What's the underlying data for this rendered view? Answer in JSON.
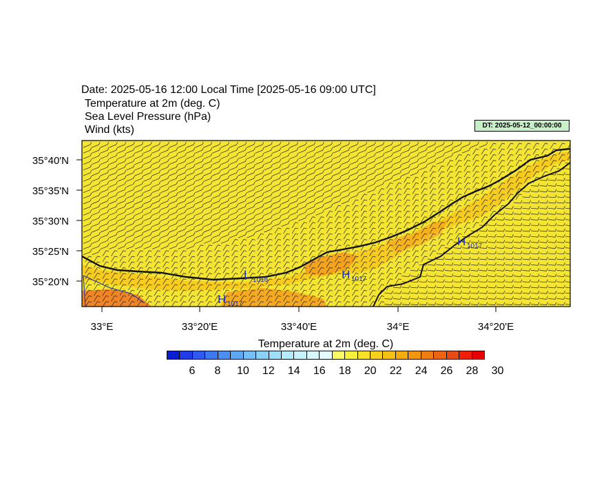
{
  "header": {
    "date_line": "Date: 2025-05-16  12:00 Local Time [2025-05-16  09:00 UTC]",
    "var1": "Temperature at 2m   (deg. C)",
    "var2": "Sea Level Pressure   (hPa)",
    "var3": "Wind   (kts)",
    "dt_badge": "DT: 2025-05-12_00:00:00"
  },
  "map": {
    "lat_labels": [
      "35°40'N",
      "35°35'N",
      "35°30'N",
      "35°25'N",
      "35°20'N"
    ],
    "lon_labels": [
      "33°E",
      "33°20'E",
      "33°40'E",
      "34°E",
      "34°20'E"
    ],
    "pressure_centers": [
      {
        "type": "L",
        "value": "1016"
      },
      {
        "type": "H",
        "value": "1017"
      },
      {
        "type": "H",
        "value": "1017"
      },
      {
        "type": "H",
        "value": "1017"
      }
    ],
    "colors": {
      "land": "#f5e533",
      "land_warm": "#f7cc20",
      "land_warmer": "#f59a1c",
      "land_hot": "#f07424",
      "coast": "#111111",
      "pressure": "#1a2fbf"
    }
  },
  "colorbar": {
    "title": "Temperature at 2m  (deg. C)",
    "labels": [
      "6",
      "8",
      "10",
      "12",
      "14",
      "16",
      "18",
      "20",
      "22",
      "24",
      "26",
      "28",
      "30"
    ],
    "colors": [
      "#0a1ed2",
      "#1f3ce6",
      "#2e5af0",
      "#3c78f0",
      "#4b90f0",
      "#5ea8f2",
      "#74bff5",
      "#8ad0f7",
      "#a0dffa",
      "#b4ebfb",
      "#c6f3fc",
      "#d8f8fd",
      "#e6fbfd",
      "#fafa64",
      "#f6f03c",
      "#f8e228",
      "#f6d21e",
      "#f5c014",
      "#f3ad0f",
      "#f1960f",
      "#ee7d14",
      "#eb6414",
      "#e84a14",
      "#f01e0a",
      "#e60000"
    ]
  }
}
